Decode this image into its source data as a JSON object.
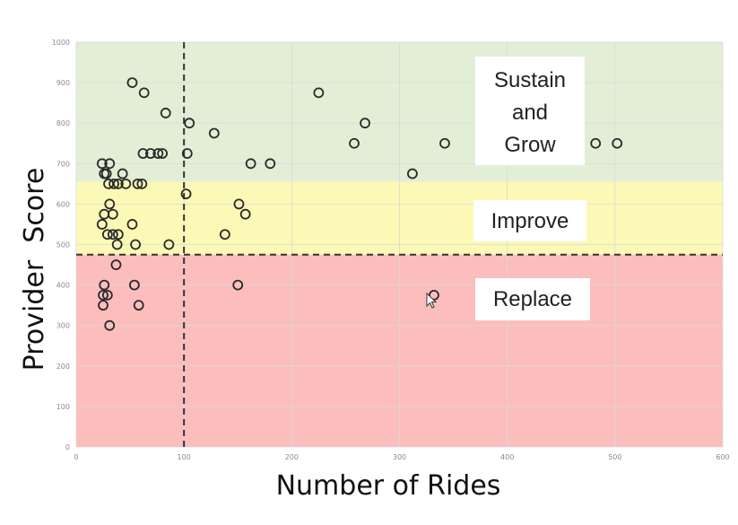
{
  "chart_data": {
    "type": "scatter",
    "xlabel": "Number of Rides",
    "ylabel": "Provider  Score",
    "xlim": [
      0,
      600
    ],
    "ylim": [
      0,
      1000
    ],
    "x_ticks": [
      "0",
      "100",
      "200",
      "300",
      "400",
      "500",
      "600"
    ],
    "y_ticks": [
      "0",
      "100",
      "200",
      "300",
      "400",
      "500",
      "600",
      "700",
      "800",
      "900",
      "1000"
    ],
    "grid": true,
    "zones": [
      {
        "label_lines": [
          "Sustain",
          "and",
          "Grow"
        ],
        "from": 655,
        "to": 1000,
        "color": "#e2efd6"
      },
      {
        "label_lines": [
          "Improve"
        ],
        "from": 475,
        "to": 655,
        "color": "#fbf9b5"
      },
      {
        "label_lines": [
          "Replace"
        ],
        "from": 0,
        "to": 475,
        "color": "#fcbdbd"
      }
    ],
    "reference_lines": {
      "x": 100,
      "y": 475
    },
    "point_color": "#2a2a2a",
    "points": [
      {
        "x": 52,
        "y": 900
      },
      {
        "x": 63,
        "y": 875
      },
      {
        "x": 83,
        "y": 825
      },
      {
        "x": 105,
        "y": 800
      },
      {
        "x": 128,
        "y": 775
      },
      {
        "x": 225,
        "y": 875
      },
      {
        "x": 268,
        "y": 800
      },
      {
        "x": 258,
        "y": 750
      },
      {
        "x": 342,
        "y": 750
      },
      {
        "x": 482,
        "y": 750
      },
      {
        "x": 502,
        "y": 750
      },
      {
        "x": 62,
        "y": 725
      },
      {
        "x": 69,
        "y": 725
      },
      {
        "x": 76,
        "y": 725
      },
      {
        "x": 80,
        "y": 725
      },
      {
        "x": 103,
        "y": 725
      },
      {
        "x": 24,
        "y": 700
      },
      {
        "x": 31,
        "y": 700
      },
      {
        "x": 162,
        "y": 700
      },
      {
        "x": 180,
        "y": 700
      },
      {
        "x": 26,
        "y": 675
      },
      {
        "x": 28,
        "y": 675
      },
      {
        "x": 43,
        "y": 675
      },
      {
        "x": 312,
        "y": 675
      },
      {
        "x": 30,
        "y": 650
      },
      {
        "x": 35,
        "y": 650
      },
      {
        "x": 39,
        "y": 650
      },
      {
        "x": 46,
        "y": 650
      },
      {
        "x": 57,
        "y": 650
      },
      {
        "x": 61,
        "y": 650
      },
      {
        "x": 102,
        "y": 625
      },
      {
        "x": 31,
        "y": 600
      },
      {
        "x": 151,
        "y": 600
      },
      {
        "x": 26,
        "y": 575
      },
      {
        "x": 34,
        "y": 575
      },
      {
        "x": 157,
        "y": 575
      },
      {
        "x": 24,
        "y": 550
      },
      {
        "x": 52,
        "y": 550
      },
      {
        "x": 29,
        "y": 525
      },
      {
        "x": 34,
        "y": 525
      },
      {
        "x": 39,
        "y": 525
      },
      {
        "x": 138,
        "y": 525
      },
      {
        "x": 38,
        "y": 500
      },
      {
        "x": 55,
        "y": 500
      },
      {
        "x": 86,
        "y": 500
      },
      {
        "x": 37,
        "y": 450
      },
      {
        "x": 26,
        "y": 400
      },
      {
        "x": 54,
        "y": 400
      },
      {
        "x": 150,
        "y": 400
      },
      {
        "x": 25,
        "y": 375
      },
      {
        "x": 29,
        "y": 375
      },
      {
        "x": 332,
        "y": 375
      },
      {
        "x": 25,
        "y": 350
      },
      {
        "x": 58,
        "y": 350
      },
      {
        "x": 31,
        "y": 300
      }
    ]
  }
}
